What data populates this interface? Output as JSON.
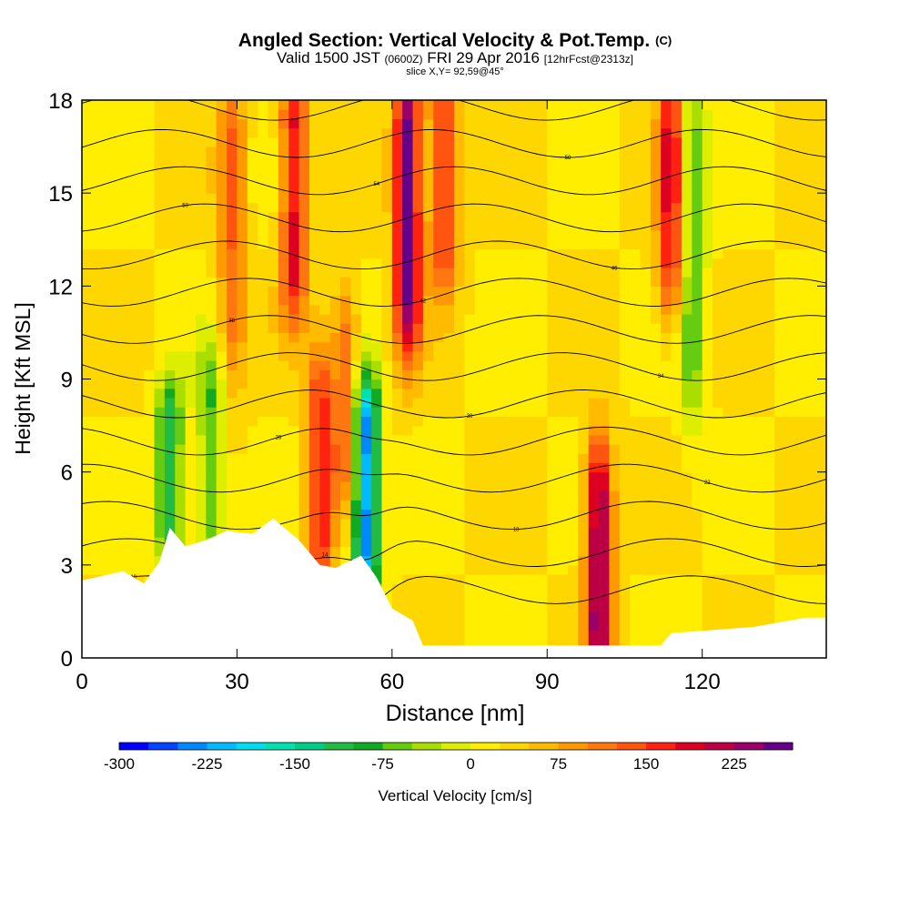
{
  "header": {
    "title": "Angled Section: Vertical Velocity & Pot.Temp.",
    "title_tag": "(C)",
    "subtitle_main": "Valid 1500 JST",
    "subtitle_utc": "(0600Z)",
    "subtitle_date": "FRI 29 Apr 2016",
    "subtitle_fcst": "[12hrFcst@2313z]",
    "slice": "slice X,Y= 92,59@45°"
  },
  "chart_data": {
    "type": "heatmap",
    "xlabel": "Distance [nm]",
    "ylabel": "Height [Kft MSL]",
    "xlim": [
      0,
      144
    ],
    "ylim": [
      0,
      18
    ],
    "x_ticks": [
      0,
      30,
      60,
      90,
      120
    ],
    "y_ticks": [
      0,
      3,
      6,
      9,
      12,
      15,
      18
    ],
    "colorbar": {
      "label": "Vertical Velocity [cm/s]",
      "min": -300,
      "max": 250,
      "step": 25,
      "tick_values": [
        -300,
        -225,
        -150,
        -75,
        0,
        75,
        150,
        225
      ],
      "colors": [
        "#0000ff",
        "#0044ff",
        "#0088ff",
        "#00bbff",
        "#00ddee",
        "#00e0b0",
        "#00cc88",
        "#22bb44",
        "#11aa22",
        "#66cc11",
        "#aadd00",
        "#ddee00",
        "#ffee00",
        "#ffd700",
        "#ffbb00",
        "#ff9900",
        "#ff7711",
        "#ff5511",
        "#ff2211",
        "#dd0022",
        "#bb0044",
        "#99006a",
        "#660088"
      ]
    },
    "updrafts": [
      {
        "x": 29,
        "z_bottom": 10,
        "z_top": 18,
        "w": 100
      },
      {
        "x": 41,
        "z_bottom": 12,
        "z_top": 18,
        "w": 160
      },
      {
        "x": 46,
        "z_bottom": 3,
        "z_top": 9,
        "w": 140
      },
      {
        "x": 51,
        "z_bottom": 6,
        "z_top": 11,
        "w": 100
      },
      {
        "x": 63,
        "z_bottom": 11,
        "z_top": 18,
        "w": 240
      },
      {
        "x": 70,
        "z_bottom": 13,
        "z_top": 18,
        "w": 150
      },
      {
        "x": 100,
        "z_bottom": 0.5,
        "z_top": 6,
        "w": 220
      },
      {
        "x": 114,
        "z_bottom": 12,
        "z_top": 18,
        "w": 160
      }
    ],
    "downdrafts": [
      {
        "x": 55,
        "z_bottom": 3,
        "z_top": 8,
        "w": -270
      },
      {
        "x": 17,
        "z_bottom": 4,
        "z_top": 8,
        "w": -150
      },
      {
        "x": 25,
        "z_bottom": 4,
        "z_top": 9,
        "w": -100
      },
      {
        "x": 118,
        "z_bottom": 9,
        "z_top": 18,
        "w": -100
      }
    ],
    "potential_temperature_isolines_C": [
      10,
      14,
      18,
      22,
      26,
      30,
      34,
      38,
      42,
      46,
      50,
      54,
      58,
      62
    ]
  }
}
